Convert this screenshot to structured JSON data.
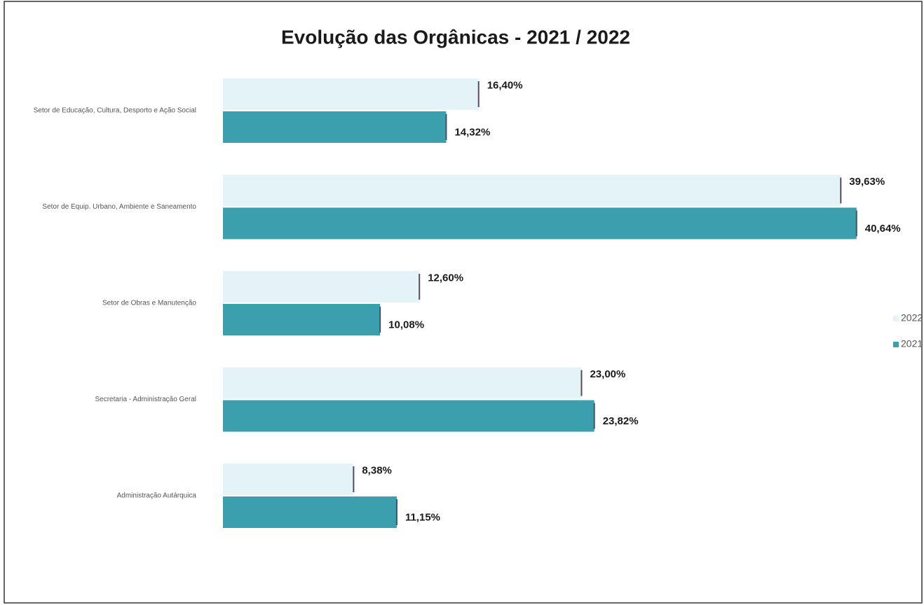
{
  "chart_data": {
    "type": "hbar",
    "title": "Evolução das Orgânicas - 2021 / 2022",
    "categories": [
      "Setor de Educação, Cultura, Desporto e Ação Social",
      "Setor de Equip. Urbano, Ambiente e Saneamento",
      "Setor de Obras e Manutenção",
      "Secretaria - Administração Geral",
      "Administração Autárquica"
    ],
    "series": [
      {
        "name": "2022",
        "color": "#e4f3f8",
        "values": [
          16.4,
          39.63,
          12.6,
          23.0,
          8.38
        ],
        "value_labels": [
          "16,40%",
          "39,63%",
          "12,60%",
          "23,00%",
          "8,38%"
        ]
      },
      {
        "name": "2021",
        "color": "#3c9fae",
        "values": [
          14.32,
          40.64,
          10.08,
          23.82,
          11.15
        ],
        "value_labels": [
          "14,32%",
          "40,64%",
          "10,08%",
          "23,82%",
          "11,15%"
        ]
      }
    ],
    "xlim": [
      0,
      42
    ],
    "legend": "right"
  }
}
